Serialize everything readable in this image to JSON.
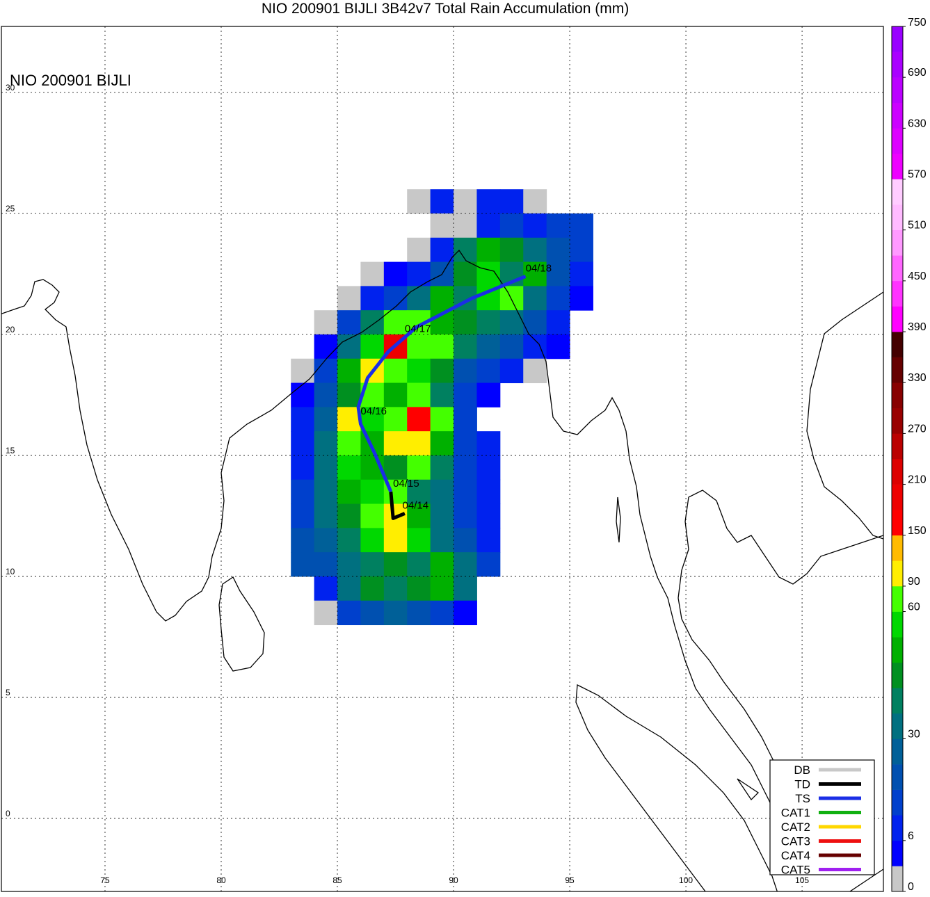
{
  "chart_data": {
    "type": "map",
    "title": "NIO 200901 BIJLI 3B42v7 Total Rain Accumulation (mm)",
    "inset_label": "NIO 200901 BIJLI",
    "xlim": [
      70.54,
      108.5
    ],
    "ylim": [
      -3.02,
      32.73
    ],
    "xticks": [
      75,
      80,
      85,
      90,
      95,
      100,
      105
    ],
    "yticks": [
      0,
      5,
      10,
      15,
      20,
      25,
      30
    ],
    "grid": true,
    "rain_grid": {
      "lon0": 83,
      "lat_top": 26,
      "step": 1,
      "rows": [
        [
          null,
          null,
          null,
          null,
          null,
          2,
          8,
          2,
          8,
          10,
          2,
          null,
          null
        ],
        [
          null,
          null,
          null,
          null,
          null,
          null,
          2,
          2,
          8,
          12,
          10,
          14,
          14
        ],
        [
          null,
          null,
          null,
          null,
          null,
          2,
          10,
          40,
          50,
          45,
          30,
          20,
          15
        ],
        [
          null,
          null,
          null,
          2,
          4,
          8,
          20,
          45,
          55,
          40,
          50,
          20,
          8
        ],
        [
          null,
          null,
          2,
          6,
          15,
          35,
          50,
          40,
          55,
          65,
          35,
          15,
          4
        ],
        [
          null,
          2,
          12,
          40,
          80,
          60,
          50,
          45,
          40,
          30,
          20,
          8,
          null
        ],
        [
          null,
          4,
          30,
          55,
          200,
          70,
          60,
          40,
          25,
          18,
          10,
          4,
          null
        ],
        [
          2,
          15,
          50,
          100,
          60,
          55,
          45,
          20,
          15,
          8,
          2,
          null,
          null
        ],
        [
          4,
          20,
          45,
          60,
          50,
          65,
          40,
          15,
          4,
          null,
          null,
          null,
          null
        ],
        [
          8,
          25,
          100,
          55,
          70,
          150,
          60,
          12,
          null,
          null,
          null,
          null,
          null
        ],
        [
          6,
          30,
          60,
          50,
          90,
          100,
          50,
          15,
          8,
          null,
          null,
          null,
          null
        ],
        [
          10,
          35,
          55,
          50,
          45,
          60,
          40,
          15,
          6,
          null,
          null,
          null,
          null
        ],
        [
          12,
          35,
          50,
          55,
          60,
          40,
          30,
          15,
          8,
          null,
          null,
          null,
          null
        ],
        [
          15,
          30,
          45,
          70,
          95,
          50,
          30,
          12,
          8,
          null,
          null,
          null,
          null
        ],
        [
          20,
          25,
          40,
          55,
          100,
          55,
          35,
          20,
          10,
          null,
          null,
          null,
          null
        ],
        [
          18,
          20,
          30,
          40,
          45,
          40,
          50,
          30,
          12,
          null,
          null,
          null,
          null
        ],
        [
          null,
          8,
          35,
          45,
          40,
          45,
          50,
          30,
          null,
          null,
          null,
          null,
          null
        ],
        [
          null,
          2,
          12,
          20,
          25,
          20,
          15,
          4,
          null,
          null,
          null,
          null,
          null
        ]
      ]
    },
    "track": [
      {
        "category": "TD",
        "lon": [
          87.9,
          87.4,
          87.3
        ],
        "lat": [
          12.6,
          12.4,
          13.5
        ]
      },
      {
        "category": "TS",
        "lon": [
          87.3,
          86.6,
          86.0,
          85.9,
          86.3,
          87.2,
          88.4,
          90.8,
          93.1
        ],
        "lat": [
          13.5,
          15.1,
          16.3,
          17.0,
          18.2,
          19.3,
          20.3,
          21.5,
          22.4
        ]
      }
    ],
    "dates": [
      {
        "label": "04/14",
        "lon": 87.8,
        "lat": 12.8
      },
      {
        "label": "04/15",
        "lon": 87.4,
        "lat": 13.7
      },
      {
        "label": "04/16",
        "lon": 86.0,
        "lat": 16.7
      },
      {
        "label": "04/17",
        "lon": 87.9,
        "lat": 20.1
      },
      {
        "label": "04/18",
        "lon": 93.1,
        "lat": 22.6
      }
    ],
    "legend": [
      {
        "name": "DB",
        "color": "#c8c8c8"
      },
      {
        "name": "TD",
        "color": "#000000"
      },
      {
        "name": "TS",
        "color": "#1a2ee6"
      },
      {
        "name": "CAT1",
        "color": "#10b010"
      },
      {
        "name": "CAT2",
        "color": "#ffd700"
      },
      {
        "name": "CAT3",
        "color": "#ee1010"
      },
      {
        "name": "CAT4",
        "color": "#660000"
      },
      {
        "name": "CAT5",
        "color": "#a020f0"
      }
    ],
    "colorbar": {
      "bounds": [
        0,
        3,
        6,
        12,
        18,
        24,
        30,
        36,
        42,
        48,
        54,
        60,
        90,
        120,
        150,
        180,
        210,
        240,
        270,
        300,
        330,
        360,
        390,
        420,
        450,
        480,
        510,
        540,
        570,
        600,
        630,
        660,
        690,
        720,
        750
      ],
      "colors": [
        "#c8c8c8",
        "#0000ff",
        "#0022ee",
        "#0040cc",
        "#0050b0",
        "#006098",
        "#007080",
        "#008060",
        "#009020",
        "#00b000",
        "#00d800",
        "#44ff00",
        "#ffee00",
        "#ffbb00",
        "#ff0000",
        "#ee0000",
        "#dd0000",
        "#bb0000",
        "#990000",
        "#880000",
        "#660000",
        "#440000",
        "#ff00ff",
        "#ff33ff",
        "#ff66ff",
        "#ff99ff",
        "#ffbbff",
        "#ffccff",
        "#ee00ff",
        "#dd00ff",
        "#cc00ff",
        "#bb00ff",
        "#aa00ff",
        "#9900ff"
      ],
      "ticks": [
        0,
        6,
        30,
        60,
        90,
        150,
        210,
        270,
        330,
        390,
        450,
        510,
        570,
        630,
        690,
        750
      ]
    }
  }
}
